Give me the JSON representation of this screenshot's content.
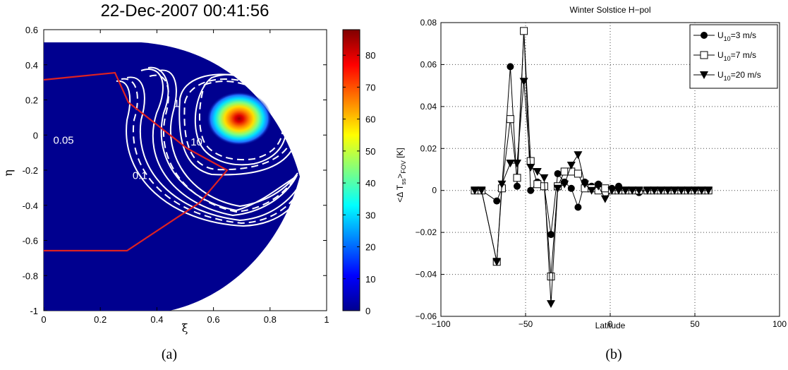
{
  "chart_data": [
    {
      "type": "heatmap",
      "title": "22-Dec-2007 00:41:56",
      "xlabel": "ξ",
      "ylabel": "η",
      "xlim": [
        0,
        1
      ],
      "ylim": [
        -1,
        0.6
      ],
      "xticks": [
        "0",
        "0.2",
        "0.4",
        "0.6",
        "0.8",
        "1"
      ],
      "yticks": [
        "-1",
        "-0.8",
        "-0.6",
        "-0.4",
        "-0.2",
        "0",
        "0.2",
        "0.4",
        "0.6"
      ],
      "colorbar": {
        "min": 0,
        "max": 88,
        "ticks": [
          "0",
          "10",
          "20",
          "30",
          "40",
          "50",
          "60",
          "70",
          "80"
        ]
      },
      "hotspot": {
        "center": [
          0.7,
          0.08
        ],
        "peak": 88
      },
      "contour_labels": [
        {
          "text": "0.05",
          "x": 0.07,
          "y": -0.05
        },
        {
          "text": "0.1",
          "x": 0.34,
          "y": -0.25
        },
        {
          "text": "10",
          "x": 0.54,
          "y": -0.06
        },
        {
          "text": "1",
          "x": 0.47,
          "y": 0.16
        }
      ],
      "grid": false,
      "panel_label": "(a)"
    },
    {
      "type": "line",
      "title": "Winter Solstice H−pol",
      "xlabel": "Latitude",
      "ylabel": "<Δ T",
      "ylabel_sub": "ss",
      "ylabel_tail": ">",
      "ylabel_sub2": "FOV",
      "ylabel_unit": " [K]",
      "xlim": [
        -100,
        100
      ],
      "ylim": [
        -0.06,
        0.08
      ],
      "xticks": [
        "−100",
        "−50",
        "0",
        "50",
        "100"
      ],
      "yticks": [
        "−0.06",
        "−0.04",
        "−0.02",
        "0",
        "0.02",
        "0.04",
        "0.06",
        "0.08"
      ],
      "grid": true,
      "legend_position": "top-right",
      "series": [
        {
          "name": "U10=3 m/s",
          "name_main": "U",
          "name_sub": "10",
          "name_tail": "=3 m/s",
          "marker": "filled-circle",
          "x": [
            -80,
            -76,
            -67,
            -64,
            -59,
            -55,
            -51,
            -47,
            -43,
            -39,
            -35,
            -31,
            -27,
            -23,
            -19,
            -15,
            -11,
            -7,
            -3,
            1,
            5,
            9,
            13,
            17,
            22,
            26,
            30,
            34,
            38,
            42,
            46,
            50,
            54,
            58
          ],
          "y": [
            0,
            0,
            -0.005,
            0.001,
            0.059,
            0.002,
            0.076,
            0,
            0.004,
            0.002,
            -0.021,
            0.008,
            0.004,
            0.001,
            -0.008,
            0.004,
            0.002,
            0.003,
            0.001,
            0.001,
            0.002,
            0,
            0,
            -0.001,
            0,
            0,
            0,
            0,
            0,
            0,
            0,
            0,
            0,
            0
          ]
        },
        {
          "name": "U10=7 m/s",
          "name_main": "U",
          "name_sub": "10",
          "name_tail": "=7 m/s",
          "marker": "open-square",
          "x": [
            -80,
            -76,
            -67,
            -64,
            -59,
            -55,
            -51,
            -47,
            -43,
            -39,
            -35,
            -31,
            -27,
            -23,
            -19,
            -15,
            -11,
            -7,
            -3,
            1,
            5,
            9,
            13,
            17,
            22,
            26,
            30,
            34,
            38,
            42,
            46,
            50,
            54,
            58
          ],
          "y": [
            0,
            0,
            -0.034,
            0.001,
            0.034,
            0.006,
            0.076,
            0.014,
            0.003,
            0.002,
            -0.041,
            0.002,
            0.009,
            0.009,
            0.008,
            0.001,
            0.001,
            0,
            0.001,
            0,
            0,
            0,
            0,
            0,
            0,
            0,
            0,
            0,
            0,
            0,
            0,
            0,
            0,
            0
          ]
        },
        {
          "name": "U10=20 m/s",
          "name_main": "U",
          "name_sub": "10",
          "name_tail": "=20 m/s",
          "marker": "filled-triangle-down",
          "x": [
            -80,
            -76,
            -67,
            -64,
            -59,
            -55,
            -51,
            -47,
            -43,
            -39,
            -35,
            -31,
            -27,
            -23,
            -19,
            -15,
            -11,
            -7,
            -3,
            1,
            5,
            9,
            13,
            17,
            22,
            26,
            30,
            34,
            38,
            42,
            46,
            50,
            54,
            58
          ],
          "y": [
            0,
            0,
            -0.034,
            0.003,
            0.013,
            0.013,
            0.052,
            0.011,
            0.009,
            0.006,
            -0.054,
            0.001,
            0.003,
            0.012,
            0.017,
            0.003,
            0,
            0.002,
            -0.004,
            0,
            0,
            0,
            0,
            0,
            0,
            0,
            0,
            0,
            0,
            0,
            0,
            0,
            0,
            0
          ]
        }
      ],
      "panel_label": "(b)"
    }
  ]
}
